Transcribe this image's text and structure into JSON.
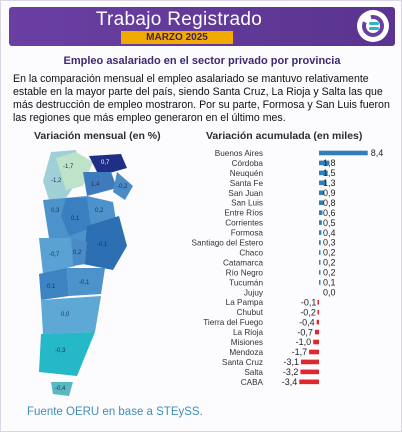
{
  "header": {
    "title": "Trabajo Registrado",
    "subtitle": "MARZO 2025"
  },
  "heading": "Empleo asalariado en el sector privado por provincia",
  "intro": "En la comparación mensual el empleo asalariado se mantuvo relativamente estable en la mayor parte del país, siendo Santa Cruz, La Rioja y Salta las que más destrucción de empleo mostraron. Por su parte, Formosa y San Luis fueron las regiones que más empleo generaron en el último mes.",
  "map": {
    "title": "Variación mensual (en %)",
    "labels": [
      "-1,2",
      "-1,7",
      "0,7",
      "1,4",
      "-0,2",
      "0,3",
      "0,1",
      "0,2",
      "-0,1",
      "-0,7",
      "0,2",
      "0,1",
      "-0,1",
      "0,0",
      "-0,3",
      "-0,4"
    ]
  },
  "chart_data": {
    "type": "bar",
    "title": "Variación acumulada (en miles)",
    "orientation": "horizontal",
    "categories": [
      "Buenos Aires",
      "Córdoba",
      "Neuquén",
      "Santa Fe",
      "San Juan",
      "San Luis",
      "Entre Ríos",
      "Corrientes",
      "Formosa",
      "Santiago del Estero",
      "Chaco",
      "Catamarca",
      "Río Negro",
      "Tucumán",
      "Jujuy",
      "La Pampa",
      "Chubut",
      "Tierra del Fuego",
      "La Rioja",
      "Misiones",
      "Mendoza",
      "Santa Cruz",
      "Salta",
      "CABA"
    ],
    "values": [
      8.4,
      1.8,
      1.5,
      1.3,
      0.9,
      0.8,
      0.6,
      0.5,
      0.4,
      0.3,
      0.2,
      0.2,
      0.2,
      0.1,
      0.0,
      -0.1,
      -0.2,
      -0.4,
      -0.7,
      -1.0,
      -1.7,
      -3.1,
      -3.2,
      -3.4
    ],
    "value_labels": [
      "8,4",
      "1,8",
      "1,5",
      "1,3",
      "0,9",
      "0,8",
      "0,6",
      "0,5",
      "0,4",
      "0,3",
      "0,2",
      "0,2",
      "0,2",
      "0,1",
      "0,0",
      "-0,1",
      "-0,2",
      "-0,4",
      "-0,7",
      "-1,0",
      "-1,7",
      "-3,1",
      "-3,2",
      "-3,4"
    ],
    "colors": {
      "positive": "#2f7fb9",
      "negative": "#e0272e"
    }
  },
  "footer": "Fuente OERU en base a STEySS."
}
